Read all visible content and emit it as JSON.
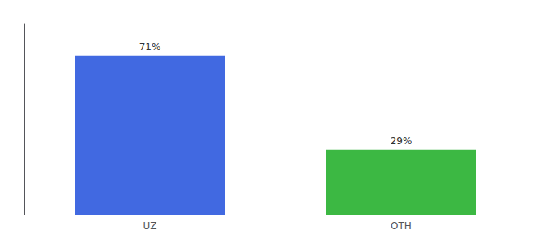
{
  "chart_data": {
    "type": "bar",
    "categories": [
      "UZ",
      "OTH"
    ],
    "values": [
      71,
      29
    ],
    "value_labels": [
      "71%",
      "29%"
    ],
    "colors": [
      "#4169e1",
      "#3cb843"
    ],
    "ylim": [
      0,
      85
    ],
    "data_labels": true,
    "tick_labels": "x",
    "grid": false
  }
}
